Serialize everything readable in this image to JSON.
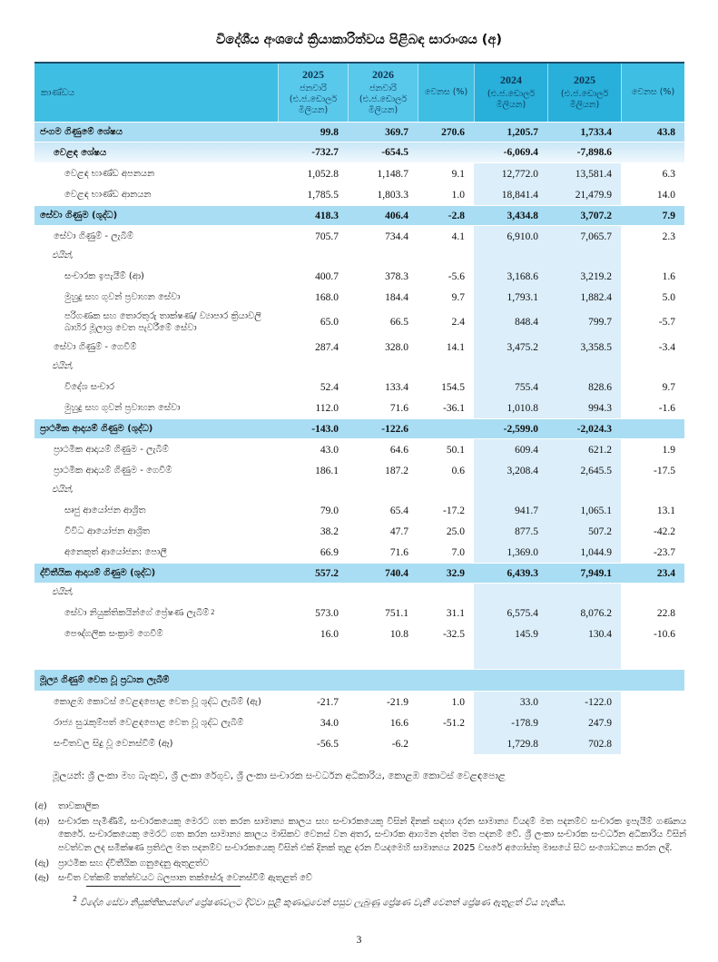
{
  "page": {
    "title": "විදේශීය අංශයේ ක්‍රියාකාරිත්වය පිළිබඳ සාරාංශය (අ)",
    "page_number": "3"
  },
  "colors": {
    "header_base": "#3FBEE3",
    "header_month": "#58C8EB",
    "header_annual": "#28AFDA",
    "band": "#A9DDF3",
    "band_gradient_top": "#C9E7F7",
    "tint": "#DCEEF9",
    "table_top_border": "#1C4C6B"
  },
  "table": {
    "header": [
      {
        "year": "",
        "sub": "කාණ්ඩය",
        "tone": "base"
      },
      {
        "year": "2025",
        "sub": "ජනවාරි (එ.ජ.ඩොලර් මිලියන)",
        "tone": "month"
      },
      {
        "year": "2026",
        "sub": "ජනවාරි (එ.ජ.ඩොලර් මිලියන)",
        "tone": "month"
      },
      {
        "year": "",
        "sub": "වෙනස (%)",
        "tone": "base"
      },
      {
        "year": "2024",
        "sub": "(එ.ජ.ඩොලර් මිලියන)",
        "tone": "annual"
      },
      {
        "year": "2025",
        "sub": "(එ.ජ.ඩොලර් මිලියන)",
        "tone": "annual"
      },
      {
        "year": "",
        "sub": "වෙනස (%)",
        "tone": "base"
      }
    ],
    "rows": [
      {
        "label": "ජංගම ගිණුමේ ශේෂය",
        "style": "level1",
        "values": [
          "99.8",
          "369.7",
          "270.6",
          "1,205.7",
          "1,733.4",
          "43.8"
        ]
      },
      {
        "label": "වෙළඳ ශේෂය",
        "style": "trade",
        "values": [
          "-732.7",
          "-654.5",
          "",
          "-6,069.4",
          "-7,898.6",
          ""
        ]
      },
      {
        "label": "වෙළඳ භාණ්ඩ අපනයන",
        "style": "sub2",
        "values": [
          "1,052.8",
          "1,148.7",
          "9.1",
          "12,772.0",
          "13,581.4",
          "6.3"
        ]
      },
      {
        "label": "වෙළඳ භාණ්ඩ ආනයන",
        "style": "sub2",
        "values": [
          "1,785.5",
          "1,803.3",
          "1.0",
          "18,841.4",
          "21,479.9",
          "14.0"
        ]
      },
      {
        "label": "සේවා ගිණුම (ශුද්ධ)",
        "style": "level1",
        "values": [
          "418.3",
          "406.4",
          "-2.8",
          "3,434.8",
          "3,707.2",
          "7.9"
        ]
      },
      {
        "label": "සේවා ගිණුම් - ලැබීම්",
        "style": "sub1",
        "values": [
          "705.7",
          "734.4",
          "4.1",
          "6,910.0",
          "7,065.7",
          "2.3"
        ]
      },
      {
        "label": "එයින්,",
        "style": "ofwhich",
        "values": [
          "",
          "",
          "",
          "",
          "",
          ""
        ]
      },
      {
        "label": "සංචාරක ඉපැයීම් (ආ)",
        "style": "sub2",
        "values": [
          "400.7",
          "378.3",
          "-5.6",
          "3,168.6",
          "3,219.2",
          "1.6"
        ]
      },
      {
        "label": "මුහුදු සහ ගුවන් ප්‍රවාහන සේවා",
        "style": "sub2",
        "values": [
          "168.0",
          "184.4",
          "9.7",
          "1,793.1",
          "1,882.4",
          "5.0"
        ]
      },
      {
        "label": "පරිගණක සහ තොරතුරු තාක්ෂණ/ ව්‍යාපාර ක්‍රියාවලි බාහිර මූලාශ්‍ර වෙත පැවරීමේ සේවා",
        "style": "sub2",
        "values": [
          "65.0",
          "66.5",
          "2.4",
          "848.4",
          "799.7",
          "-5.7"
        ]
      },
      {
        "label": "සේවා ගිණුම් - ගෙවීම්",
        "style": "sub1",
        "values": [
          "287.4",
          "328.0",
          "14.1",
          "3,475.2",
          "3,358.5",
          "-3.4"
        ]
      },
      {
        "label": "එයින්,",
        "style": "ofwhich",
        "values": [
          "",
          "",
          "",
          "",
          "",
          ""
        ]
      },
      {
        "label": "විදේශ සංචාර",
        "style": "sub2",
        "values": [
          "52.4",
          "133.4",
          "154.5",
          "755.4",
          "828.6",
          "9.7"
        ]
      },
      {
        "label": "මුහුදු සහ ගුවන් ප්‍රවාහන සේවා",
        "style": "sub2",
        "values": [
          "112.0",
          "71.6",
          "-36.1",
          "1,010.8",
          "994.3",
          "-1.6"
        ]
      },
      {
        "label": "ප්‍රාථමික ආදායම් ගිණුම (ශුද්ධ)",
        "style": "level1",
        "values": [
          "-143.0",
          "-122.6",
          "",
          "-2,599.0",
          "-2,024.3",
          ""
        ]
      },
      {
        "label": "ප්‍රාථමික ආදායම් ගිණුම - ලැබීම්",
        "style": "sub1",
        "values": [
          "43.0",
          "64.6",
          "50.1",
          "609.4",
          "621.2",
          "1.9"
        ]
      },
      {
        "label": "ප්‍රාථමික ආදායම් ගිණුම - ගෙවීම්",
        "style": "sub1",
        "values": [
          "186.1",
          "187.2",
          "0.6",
          "3,208.4",
          "2,645.5",
          "-17.5"
        ]
      },
      {
        "label": "එයින්,",
        "style": "ofwhich",
        "values": [
          "",
          "",
          "",
          "",
          "",
          ""
        ]
      },
      {
        "label": "සෘජු ආයෝජන ආශ්‍රිත",
        "style": "sub2",
        "values": [
          "79.0",
          "65.4",
          "-17.2",
          "941.7",
          "1,065.1",
          "13.1"
        ]
      },
      {
        "label": "විවිධ ආයෝජන ආශ්‍රිත",
        "style": "sub2",
        "values": [
          "38.2",
          "47.7",
          "25.0",
          "877.5",
          "507.2",
          "-42.2"
        ]
      },
      {
        "label": "අනෙකුත් ආයෝජන: පොලී",
        "style": "sub2",
        "values": [
          "66.9",
          "71.6",
          "7.0",
          "1,369.0",
          "1,044.9",
          "-23.7"
        ]
      },
      {
        "label": "ද්විතීයික ආදායම් ගිණුම (ශුද්ධ)",
        "style": "level1",
        "values": [
          "557.2",
          "740.4",
          "32.9",
          "6,439.3",
          "7,949.1",
          "23.4"
        ]
      },
      {
        "label": "එයින්,",
        "style": "ofwhich",
        "values": [
          "",
          "",
          "",
          "",
          "",
          ""
        ]
      },
      {
        "label": "සේවා නියුක්තිකයින්ගේ ප්‍රේෂණ ලැබීම්",
        "sup": "2",
        "style": "sub2",
        "values": [
          "573.0",
          "751.1",
          "31.1",
          "6,575.4",
          "8,076.2",
          "22.8"
        ]
      },
      {
        "label": "පෞද්ගලික සංක්‍රාම ගෙවීම්",
        "style": "sub2",
        "values": [
          "16.0",
          "10.8",
          "-32.5",
          "145.9",
          "130.4",
          "-10.6"
        ]
      },
      {
        "label": "",
        "style": "spacer",
        "values": [
          "",
          "",
          "",
          "",
          "",
          ""
        ]
      },
      {
        "label": "මූල්‍ය ගිණුම් වෙත වූ ප්‍රධාන ලැබීම්",
        "style": "section"
      },
      {
        "label": "කොළඹ කොටස් වෙළඳපොළ වෙත වූ ශුද්ධ ලැබීම් (ඇ)",
        "style": "sub1",
        "values": [
          "-21.7",
          "-21.9",
          "1.0",
          "33.0",
          "-122.0",
          ""
        ]
      },
      {
        "label": "රාජ්‍ය සුරැකුම්පත් වෙළඳපොළ වෙත වූ ශුද්ධ ලැබීම්",
        "style": "sub1",
        "values": [
          "34.0",
          "16.6",
          "-51.2",
          "-178.9",
          "247.9",
          ""
        ]
      },
      {
        "label": "සංචිතවල සිදු වූ වෙනස්වීම් (ඈ)",
        "style": "sub1",
        "values": [
          "-56.5",
          "-6.2",
          "",
          "1,729.8",
          "702.8",
          ""
        ]
      }
    ]
  },
  "source": "මූලයන්: ශ්‍රී ලංකා මහ බැංකුව, ශ්‍රී ලංකා රේගුව, ශ්‍රී ලංකා සංචාරක සංවර්ධන අධිකාරිය, කොළඹ කොටස් වෙළඳපොළ",
  "notes": [
    {
      "tag": "(අ)",
      "text": "තාවකාලික"
    },
    {
      "tag": "(ආ)",
      "text": "සංචාරක පැමිණීම්, සංචාරකයෙකු මෙරට ගත කරන සාමාන්‍ය කාලය සහ සංචාරකයෙකු විසින් දිනක් සඳහා දරන සාමාන්‍ය වියදම් මත පදනම්ව සංචාරක ඉපැයීම් ගණනය කෙරේ. සංචාරකයෙකු මෙරට ගත කරන සාමාන්‍ය කාලය මාසිකව වෙනස් වන අතර, සංචාරක ආගමන දත්ත මත පදනම් වේ. ශ්‍රී ලංකා සංචාරක සංවර්ධන අධිකාරිය විසින් පවත්වන ලද සමීක්ෂණ ප්‍රතිඵල මත පදනම්ව සංචාරකයෙකු විසින් එක් දිනක් තුළ දරන වියදමෙහි සාමාන්‍යය 2025 වසරේ අගෝස්තු මාසයේ සිට සංශෝධනය කරන ලදී."
    },
    {
      "tag": "(ඇ)",
      "text": "ප්‍රාථමික සහ ද්විතීයික ගනුදෙනු ඇතුළත්ව"
    },
    {
      "tag": "(ඈ)",
      "text": "සංචිත වත්කම් තත්ත්වයට බලපාන තක්සේරු වෙනස්වීම් ඇතුළත් වේ"
    }
  ],
  "footnote": {
    "marker": "2",
    "text": "විදේශ සේවා නියුක්තිකයන්ගේ ප්‍රේෂණවලට දිට්වා සුළි කුණාටුවෙන් පසුව ලැබුණු ප්‍රේෂණ වැනි වෙනත් ප්‍රේෂණ ඇතුළත් විය හැකිය."
  }
}
